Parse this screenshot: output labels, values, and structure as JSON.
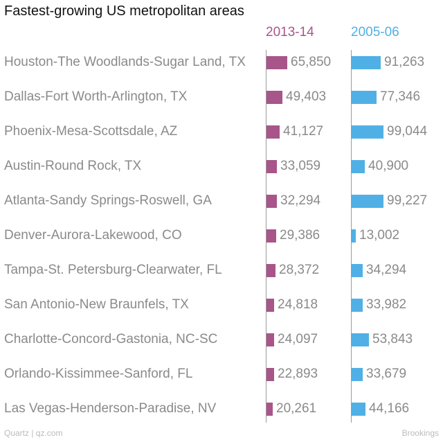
{
  "chart_data": {
    "type": "bar",
    "title": "Fastest-growing US metropolitan areas",
    "categories": [
      "Houston-The Woodlands-Sugar Land, TX",
      "Dallas-Fort Worth-Arlington, TX",
      "Phoenix-Mesa-Scottsdale, AZ",
      "Austin-Round Rock, TX",
      "Atlanta-Sandy Springs-Roswell, GA",
      "Denver-Aurora-Lakewood, CO",
      "Tampa-St. Petersburg-Clearwater, FL",
      "San Antonio-New Braunfels, TX",
      "Charlotte-Concord-Gastonia, NC-SC",
      "Orlando-Kissimmee-Sanford, FL",
      "Las Vegas-Henderson-Paradise, NV"
    ],
    "series": [
      {
        "name": "2013-14",
        "color": "#a8558a",
        "values": [
          65850,
          49403,
          41127,
          33059,
          32294,
          29386,
          28372,
          24818,
          24097,
          22893,
          20261
        ],
        "labels": [
          "65,850",
          "49,403",
          "41,127",
          "33,059",
          "32,294",
          "29,386",
          "28,372",
          "24,818",
          "24,097",
          "22,893",
          "20,261"
        ]
      },
      {
        "name": "2005-06",
        "color": "#50b0e6",
        "values": [
          91263,
          77346,
          99044,
          40900,
          99227,
          13002,
          34294,
          33982,
          53843,
          33679,
          44166
        ],
        "labels": [
          "91,263",
          "77,346",
          "99,044",
          "40,900",
          "99,227",
          "13,002",
          "34,294",
          "33,982",
          "53,843",
          "33,679",
          "44,166"
        ]
      }
    ],
    "xlim": [
      0,
      235000
    ]
  },
  "footer": {
    "source_left": "Quartz | qz.com",
    "source_right": "Brookings"
  }
}
